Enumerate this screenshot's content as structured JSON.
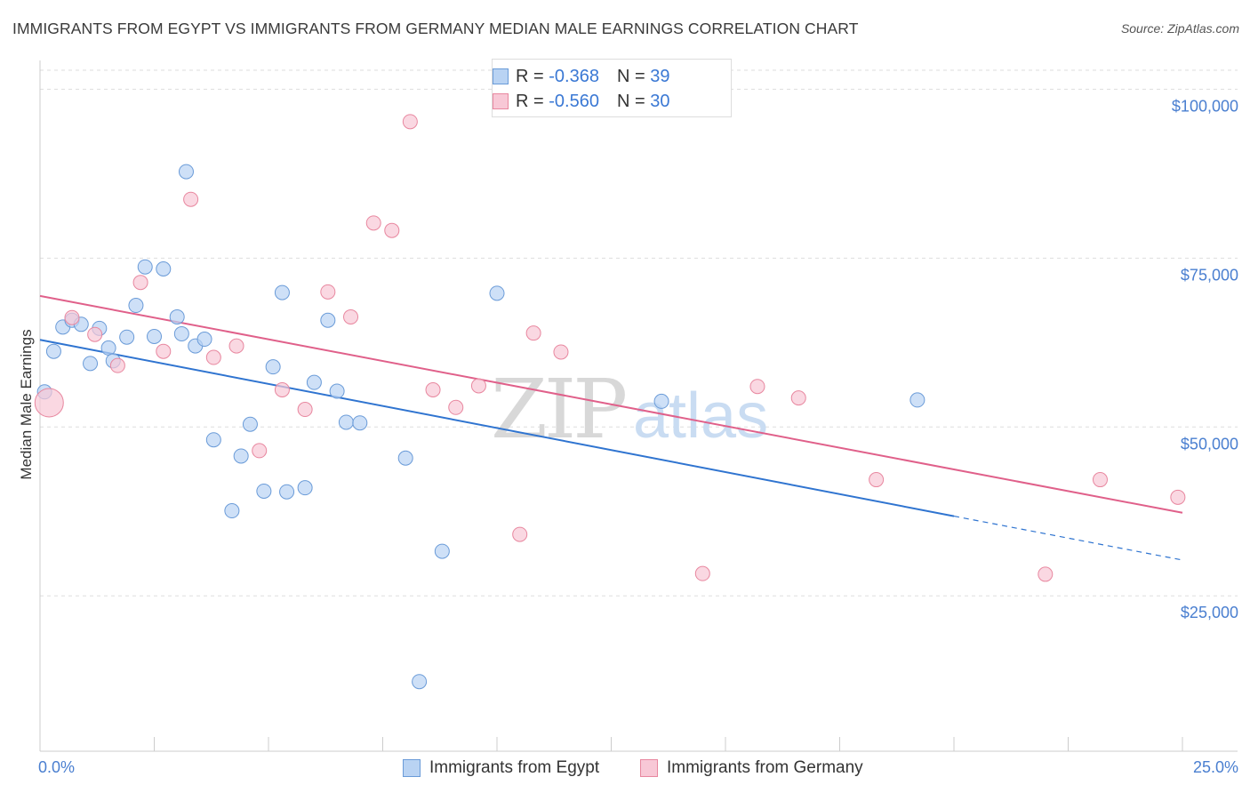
{
  "header": {
    "title": "IMMIGRANTS FROM EGYPT VS IMMIGRANTS FROM GERMANY MEDIAN MALE EARNINGS CORRELATION CHART",
    "source": "Source: ZipAtlas.com"
  },
  "watermark": {
    "part1": "ZIP",
    "part2": "atlas"
  },
  "legend": {
    "rows": [
      {
        "r_label": "R =",
        "r_value": "-0.368",
        "n_label": "N =",
        "n_value": "39"
      },
      {
        "r_label": "R =",
        "r_value": "-0.560",
        "n_label": "N =",
        "n_value": "30"
      }
    ]
  },
  "bottom_legend": {
    "egypt": "Immigrants from Egypt",
    "germany": "Immigrants from Germany"
  },
  "colors": {
    "egypt_fill": "#b9d3f3",
    "egypt_stroke": "#6a9bd8",
    "egypt_line": "#2f74d0",
    "germany_fill": "#f8c8d6",
    "germany_stroke": "#e8879f",
    "germany_line": "#e0608a",
    "tick_text": "#4a7fd0",
    "grid": "#dddddd"
  },
  "chart_data": {
    "type": "scatter",
    "title": "IMMIGRANTS FROM EGYPT VS IMMIGRANTS FROM GERMANY MEDIAN MALE EARNINGS CORRELATION CHART",
    "xlabel": "",
    "ylabel": "Median Male Earnings",
    "xlim": [
      0,
      25
    ],
    "ylim": [
      2000,
      104000
    ],
    "x_tick_labels": [
      "0.0%",
      "25.0%"
    ],
    "y_ticks": [
      25000,
      50000,
      75000,
      100000
    ],
    "y_tick_labels": [
      "$25,000",
      "$50,000",
      "$75,000",
      "$100,000"
    ],
    "grid": "horizontal dashed",
    "series": [
      {
        "name": "Immigrants from Egypt",
        "R": -0.368,
        "N": 39,
        "points": [
          [
            0.1,
            55200
          ],
          [
            0.3,
            61200
          ],
          [
            0.5,
            64800
          ],
          [
            0.7,
            65800
          ],
          [
            0.9,
            65200
          ],
          [
            1.1,
            59400
          ],
          [
            1.3,
            64600
          ],
          [
            1.5,
            61700
          ],
          [
            1.6,
            59800
          ],
          [
            1.9,
            63300
          ],
          [
            2.1,
            68000
          ],
          [
            2.3,
            73700
          ],
          [
            2.5,
            63400
          ],
          [
            2.7,
            73400
          ],
          [
            3.0,
            66300
          ],
          [
            3.1,
            63800
          ],
          [
            3.2,
            87800
          ],
          [
            3.4,
            62000
          ],
          [
            3.6,
            63000
          ],
          [
            3.8,
            48100
          ],
          [
            4.2,
            37600
          ],
          [
            4.4,
            45700
          ],
          [
            4.6,
            50400
          ],
          [
            4.9,
            40500
          ],
          [
            5.1,
            58900
          ],
          [
            5.3,
            69900
          ],
          [
            5.4,
            40400
          ],
          [
            5.8,
            41000
          ],
          [
            6.0,
            56600
          ],
          [
            6.3,
            65800
          ],
          [
            6.5,
            55300
          ],
          [
            6.7,
            50700
          ],
          [
            7.0,
            50600
          ],
          [
            8.0,
            45400
          ],
          [
            8.3,
            12300
          ],
          [
            8.8,
            31600
          ],
          [
            10.0,
            69800
          ],
          [
            13.6,
            53800
          ],
          [
            19.2,
            54000
          ]
        ],
        "trend": {
          "x": [
            0,
            20.0
          ],
          "y": [
            62900,
            36800
          ],
          "dashed_to": [
            25,
            30300
          ]
        }
      },
      {
        "name": "Immigrants from Germany",
        "R": -0.56,
        "N": 30,
        "points": [
          [
            0.2,
            53600
          ],
          [
            0.7,
            66200
          ],
          [
            1.2,
            63700
          ],
          [
            1.7,
            59100
          ],
          [
            2.2,
            71400
          ],
          [
            2.7,
            61200
          ],
          [
            3.3,
            83700
          ],
          [
            3.8,
            60300
          ],
          [
            4.3,
            62000
          ],
          [
            4.8,
            46500
          ],
          [
            5.3,
            55500
          ],
          [
            5.8,
            52600
          ],
          [
            6.3,
            70000
          ],
          [
            6.8,
            66300
          ],
          [
            7.3,
            80200
          ],
          [
            7.7,
            79100
          ],
          [
            8.1,
            95200
          ],
          [
            8.6,
            55500
          ],
          [
            9.1,
            52900
          ],
          [
            9.6,
            56100
          ],
          [
            10.5,
            34100
          ],
          [
            10.8,
            63900
          ],
          [
            11.4,
            61100
          ],
          [
            14.5,
            28300
          ],
          [
            15.7,
            56000
          ],
          [
            16.6,
            54300
          ],
          [
            18.3,
            42200
          ],
          [
            22.0,
            28200
          ],
          [
            23.2,
            42200
          ],
          [
            24.9,
            39600
          ]
        ],
        "trend": {
          "x": [
            0,
            25
          ],
          "y": [
            69400,
            37300
          ]
        }
      }
    ]
  }
}
